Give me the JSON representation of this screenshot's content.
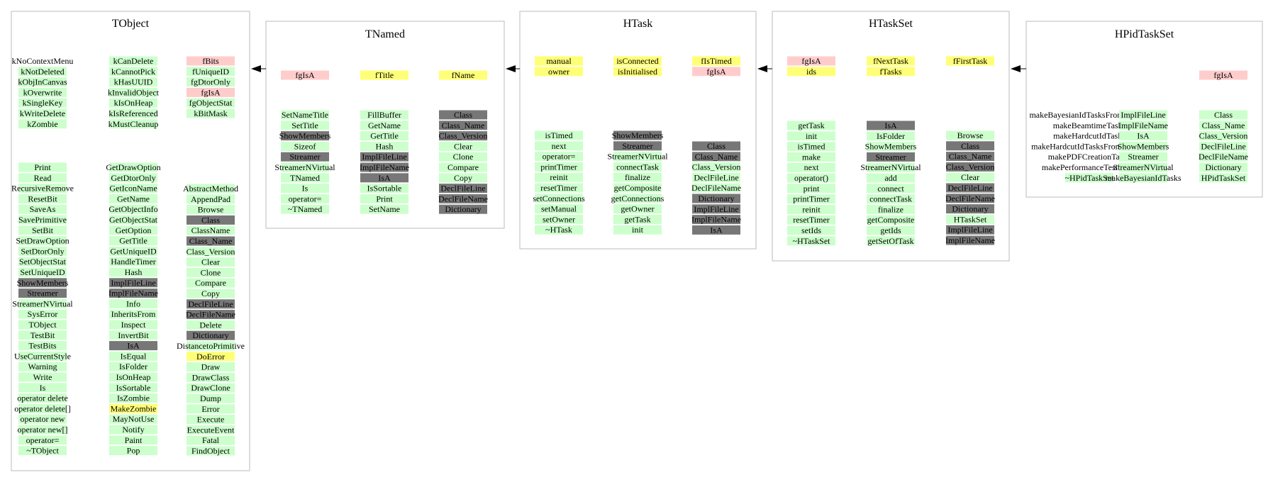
{
  "classes": [
    {
      "id": "tobject",
      "title": "TObject",
      "header_rows": [
        [
          "kNoContextMenu",
          "kCanDelete",
          "fBits"
        ],
        [
          "kNotDeleted",
          "kCannotPick",
          "fUniqueID"
        ],
        [
          "kObjInCanvas",
          "kHasUUID",
          "fgDtorOnly"
        ],
        [
          "kOverwrite",
          "kInvalidObject",
          "fgIsA"
        ],
        [
          "kSingleKey",
          "kIsOnHeap",
          "fgObjectStat"
        ],
        [
          "kWriteDelete",
          "kIsReferenced",
          "kBitMask"
        ],
        [
          "kZombie",
          "kMustCleanup",
          ""
        ]
      ],
      "header_styles": [
        [
          "plain",
          "green",
          "pink"
        ],
        [
          "green",
          "green",
          "green"
        ],
        [
          "green",
          "green",
          "green"
        ],
        [
          "green",
          "green",
          "pink"
        ],
        [
          "green",
          "green",
          "green"
        ],
        [
          "green",
          "green",
          "green"
        ],
        [
          "green",
          "green",
          "none"
        ]
      ],
      "method_columns": [
        {
          "items": [
            "Print",
            "Read",
            "RecursiveRemove",
            "ResetBit",
            "SaveAs",
            "SavePrimitive",
            "SetBit",
            "SetDrawOption",
            "SetDtorOnly",
            "SetObjectStat",
            "SetUniqueID",
            "ShowMembers",
            "Streamer",
            "StreamerNVirtual",
            "SysError",
            "TObject",
            "TestBit",
            "TestBits",
            "UseCurrentStyle",
            "Warning",
            "Write",
            "Is",
            "operator delete",
            "operator delete[]",
            "operator new",
            "operator new[]",
            "operator=",
            "~TObject"
          ],
          "styles": [
            "green",
            "green",
            "green",
            "green",
            "green",
            "green",
            "green",
            "green",
            "green",
            "green",
            "green",
            "gray",
            "gray",
            "green",
            "green",
            "green",
            "green",
            "green",
            "green",
            "green",
            "green",
            "green",
            "green",
            "green",
            "green",
            "green",
            "green",
            "green"
          ]
        },
        {
          "items": [
            "GetDrawOption",
            "GetDtorOnly",
            "GetIconName",
            "GetName",
            "GetObjectInfo",
            "GetObjectStat",
            "GetOption",
            "GetTitle",
            "GetUniqueID",
            "HandleTimer",
            "Hash",
            "ImplFileLine",
            "ImplFileName",
            "Info",
            "InheritsFrom",
            "Inspect",
            "InvertBit",
            "IsA",
            "IsEqual",
            "IsFolder",
            "IsOnHeap",
            "IsSortable",
            "IsZombie",
            "MakeZombie",
            "MayNotUse",
            "Notify",
            "Paint",
            "Pop"
          ],
          "styles": [
            "green",
            "green",
            "green",
            "green",
            "green",
            "green",
            "green",
            "green",
            "green",
            "green",
            "green",
            "gray",
            "gray",
            "green",
            "green",
            "green",
            "green",
            "gray",
            "green",
            "green",
            "green",
            "green",
            "green",
            "yellow",
            "green",
            "green",
            "green",
            "green"
          ]
        },
        {
          "items": [
            "AbstractMethod",
            "AppendPad",
            "Browse",
            "Class",
            "ClassName",
            "Class_Name",
            "Class_Version",
            "Clear",
            "Clone",
            "Compare",
            "Copy",
            "DeclFileLine",
            "DeclFileName",
            "Delete",
            "Dictionary",
            "DistancetoPrimitive",
            "DoError",
            "Draw",
            "DrawClass",
            "DrawClone",
            "Dump",
            "Error",
            "Execute",
            "ExecuteEvent",
            "Fatal",
            "FindObject"
          ],
          "styles": [
            "green",
            "green",
            "green",
            "gray",
            "green",
            "gray",
            "green",
            "green",
            "green",
            "green",
            "green",
            "gray",
            "gray",
            "green",
            "gray",
            "green",
            "yellow",
            "green",
            "green",
            "green",
            "green",
            "green",
            "green",
            "green",
            "green",
            "green"
          ]
        }
      ]
    },
    {
      "id": "tnamed",
      "title": "TNamed",
      "header_rows": [
        [
          "fgIsA",
          "fTitle",
          "fName"
        ]
      ],
      "header_styles": [
        [
          "pink",
          "yellow",
          "yellow"
        ]
      ],
      "method_columns": [
        {
          "items": [
            "SetNameTitle",
            "SetTitle",
            "ShowMembers",
            "Sizeof",
            "Streamer",
            "StreamerNVirtual",
            "TNamed",
            "Is",
            "operator=",
            "~TNamed"
          ],
          "styles": [
            "green",
            "green",
            "gray",
            "green",
            "gray",
            "green",
            "green",
            "green",
            "green",
            "green"
          ]
        },
        {
          "items": [
            "FillBuffer",
            "GetName",
            "GetTitle",
            "Hash",
            "ImplFileLine",
            "ImplFileName",
            "IsA",
            "IsSortable",
            "Print",
            "SetName"
          ],
          "styles": [
            "green",
            "green",
            "green",
            "green",
            "gray",
            "gray",
            "gray",
            "green",
            "green",
            "green"
          ]
        },
        {
          "items": [
            "Class",
            "Class_Name",
            "Class_Version",
            "Clear",
            "Clone",
            "Compare",
            "Copy",
            "DeclFileLine",
            "DeclFileName",
            "Dictionary"
          ],
          "styles": [
            "gray",
            "gray",
            "gray",
            "green",
            "green",
            "green",
            "green",
            "gray",
            "gray",
            "gray"
          ]
        }
      ]
    },
    {
      "id": "htask",
      "title": "HTask",
      "header_rows": [
        [
          "manual",
          "isConnected",
          "fIsTimed"
        ],
        [
          "owner",
          "isInitialised",
          "fgIsA"
        ]
      ],
      "header_styles": [
        [
          "yellow",
          "yellow",
          "yellow"
        ],
        [
          "yellow",
          "yellow",
          "pink"
        ]
      ],
      "method_columns": [
        {
          "items": [
            "isTimed",
            "next",
            "operator=",
            "printTimer",
            "reinit",
            "resetTimer",
            "setConnections",
            "setManual",
            "setOwner",
            "~HTask"
          ],
          "styles": [
            "green",
            "green",
            "green",
            "green",
            "green",
            "green",
            "green",
            "green",
            "green",
            "green"
          ]
        },
        {
          "items": [
            "ShowMembers",
            "Streamer",
            "StreamerNVirtual",
            "connectTask",
            "finalize",
            "getComposite",
            "getConnections",
            "getOwner",
            "getTask",
            "init"
          ],
          "styles": [
            "gray",
            "gray",
            "green",
            "green",
            "green",
            "green",
            "green",
            "green",
            "green",
            "green"
          ]
        },
        {
          "items": [
            "Class",
            "Class_Name",
            "Class_Version",
            "DeclFileLine",
            "DeclFileName",
            "Dictionary",
            "ImplFileLine",
            "ImplFileName",
            "IsA"
          ],
          "styles": [
            "gray",
            "gray",
            "green",
            "green",
            "green",
            "gray",
            "gray",
            "gray",
            "gray"
          ]
        }
      ]
    },
    {
      "id": "htaskset",
      "title": "HTaskSet",
      "header_rows": [
        [
          "fgIsA",
          "fNextTask",
          "fFirstTask"
        ],
        [
          "ids",
          "fTasks",
          ""
        ]
      ],
      "header_styles": [
        [
          "pink",
          "yellow",
          "yellow"
        ],
        [
          "yellow",
          "yellow",
          "none"
        ]
      ],
      "method_columns": [
        {
          "items": [
            "getTask",
            "init",
            "isTimed",
            "make",
            "next",
            "operator()",
            "print",
            "printTimer",
            "reinit",
            "resetTimer",
            "setIds",
            "~HTaskSet"
          ],
          "styles": [
            "green",
            "green",
            "green",
            "green",
            "green",
            "green",
            "green",
            "green",
            "green",
            "green",
            "green",
            "green"
          ]
        },
        {
          "items": [
            "IsA",
            "IsFolder",
            "ShowMembers",
            "Streamer",
            "StreamerNVirtual",
            "add",
            "connect",
            "connectTask",
            "finalize",
            "getComposite",
            "getIds",
            "getSetOfTask"
          ],
          "styles": [
            "gray",
            "green",
            "green",
            "gray",
            "green",
            "green",
            "green",
            "green",
            "green",
            "green",
            "green",
            "green"
          ]
        },
        {
          "items": [
            "Browse",
            "Class",
            "Class_Name",
            "Class_Version",
            "Clear",
            "DeclFileLine",
            "DeclFileName",
            "Dictionary",
            "HTaskSet",
            "ImplFileLine",
            "ImplFileName"
          ],
          "styles": [
            "green",
            "gray",
            "gray",
            "gray",
            "green",
            "gray",
            "gray",
            "gray",
            "green",
            "gray",
            "gray"
          ]
        }
      ]
    },
    {
      "id": "hpidtaskset",
      "title": "HPidTaskSet",
      "header_rows": [
        [
          "",
          "",
          "fgIsA"
        ]
      ],
      "header_styles": [
        [
          "none",
          "none",
          "pink"
        ]
      ],
      "method_columns": [
        {
          "items": [
            "makeBayesianIdTasksFromScratch",
            "makeBeamtimeTasks",
            "makeHardcutIdTasks",
            "makeHardcutIdTasksFromScratch",
            "makePDFCreationTasks",
            "makePerformanceTestTasks",
            "~HPidTaskSet"
          ],
          "styles": [
            "none",
            "none",
            "none",
            "none",
            "none",
            "none",
            "green"
          ]
        },
        {
          "items": [
            "ImplFileLine",
            "ImplFileName",
            "IsA",
            "ShowMembers",
            "Streamer",
            "StreamerNVirtual",
            "makeBayesianIdTasks"
          ],
          "styles": [
            "green",
            "green",
            "green",
            "green",
            "green",
            "green",
            "green"
          ]
        },
        {
          "items": [
            "Class",
            "Class_Name",
            "Class_Version",
            "DeclFileLine",
            "DeclFileName",
            "Dictionary",
            "HPidTaskSet"
          ],
          "styles": [
            "green",
            "green",
            "green",
            "green",
            "green",
            "green",
            "green"
          ]
        }
      ]
    }
  ],
  "inheritance": [
    {
      "from": "tnamed",
      "to": "tobject"
    },
    {
      "from": "htask",
      "to": "tnamed"
    },
    {
      "from": "htaskset",
      "to": "htask"
    },
    {
      "from": "hpidtaskset",
      "to": "htaskset"
    }
  ],
  "colors": {
    "green": "#ccffcc",
    "gray": "#777777",
    "pink": "#ffcccc",
    "yellow": "#ffff77",
    "border": "#bbbbbb",
    "text": "#000000"
  }
}
